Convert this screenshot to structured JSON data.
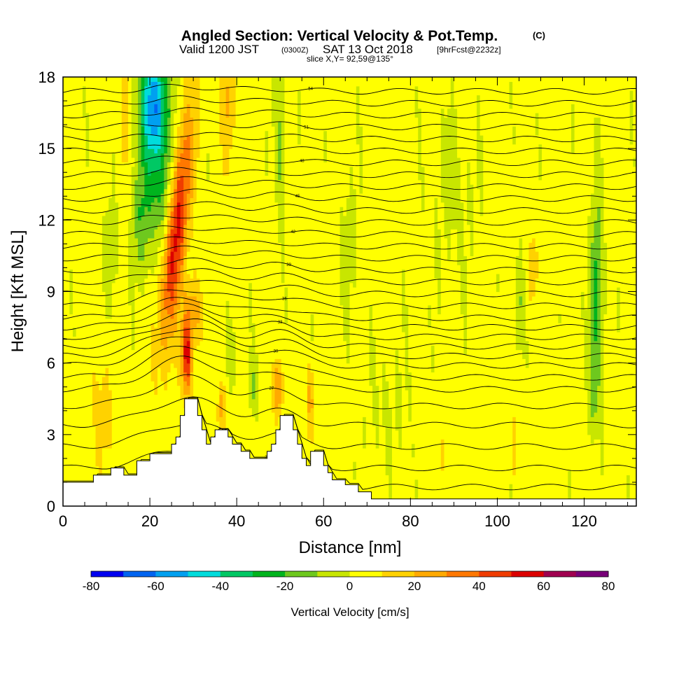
{
  "header": {
    "title": "Angled Section: Vertical Velocity & Pot.Temp.",
    "title_unit": "(C)",
    "valid_prefix": "Valid 1200 JST",
    "valid_utc": "(0300Z)",
    "valid_date": "SAT 13 Oct 2018",
    "fcst": "[9hrFcst@2232z]",
    "slice": "slice X,Y= 92,59@135°"
  },
  "chart_data": {
    "type": "heatmap",
    "xlabel": "Distance [nm]",
    "ylabel": "Height [Kft MSL]",
    "xlim": [
      0,
      132
    ],
    "ylim": [
      0,
      18
    ],
    "x_ticks": [
      "0",
      "20",
      "40",
      "60",
      "80",
      "100",
      "120"
    ],
    "y_ticks": [
      "0",
      "3",
      "6",
      "9",
      "12",
      "15",
      "18"
    ],
    "colorbar": {
      "label": "Vertical Velocity [cm/s]",
      "range": [
        -80,
        80
      ],
      "ticks": [
        "-80",
        "-60",
        "-40",
        "-20",
        "0",
        "20",
        "40",
        "60",
        "80"
      ],
      "colors": [
        "#0000f0",
        "#0064f0",
        "#00a0f0",
        "#00dcdc",
        "#00c864",
        "#00b41e",
        "#6ec81e",
        "#c8e600",
        "#ffff00",
        "#ffd200",
        "#ffaa00",
        "#ff7800",
        "#f03c00",
        "#dc0000",
        "#a00050",
        "#780078"
      ]
    },
    "terrain_profile": [
      [
        0,
        1
      ],
      [
        6,
        1
      ],
      [
        7,
        1.3
      ],
      [
        10,
        1.3
      ],
      [
        11,
        1.6
      ],
      [
        13,
        1.6
      ],
      [
        14,
        1.3
      ],
      [
        16,
        1.3
      ],
      [
        17,
        1.9
      ],
      [
        19,
        1.9
      ],
      [
        20,
        2.2
      ],
      [
        24,
        2.2
      ],
      [
        25,
        2.6
      ],
      [
        26,
        2.9
      ],
      [
        27,
        3.8
      ],
      [
        28,
        4.5
      ],
      [
        30,
        4.5
      ],
      [
        31,
        3.8
      ],
      [
        32,
        3.2
      ],
      [
        33,
        2.6
      ],
      [
        34,
        2.9
      ],
      [
        35,
        3.2
      ],
      [
        37,
        3.2
      ],
      [
        38,
        2.9
      ],
      [
        39,
        2.6
      ],
      [
        41,
        2.3
      ],
      [
        42,
        2.3
      ],
      [
        43,
        2.0
      ],
      [
        46,
        2.0
      ],
      [
        47,
        2.3
      ],
      [
        48,
        2.6
      ],
      [
        49,
        3.2
      ],
      [
        50,
        3.8
      ],
      [
        52,
        3.8
      ],
      [
        53,
        3.2
      ],
      [
        54,
        2.6
      ],
      [
        55,
        2.0
      ],
      [
        56,
        1.7
      ],
      [
        57,
        2.3
      ],
      [
        59,
        2.3
      ],
      [
        60,
        1.7
      ],
      [
        61,
        1.4
      ],
      [
        62,
        1.1
      ],
      [
        64,
        1.1
      ],
      [
        65,
        0.9
      ],
      [
        67,
        0.9
      ],
      [
        68,
        0.6
      ],
      [
        70,
        0.6
      ],
      [
        71,
        0.3
      ],
      [
        132,
        0.3
      ]
    ],
    "velocity_features": [
      {
        "x": 26,
        "y": 11.5,
        "sx": 2.5,
        "sy": 4.5,
        "tilt": -0.18,
        "w": 55
      },
      {
        "x": 28.5,
        "y": 6.3,
        "sx": 1.2,
        "sy": 1.6,
        "tilt": 0,
        "w": 50
      },
      {
        "x": 30,
        "y": 8.2,
        "sx": 2.0,
        "sy": 1.4,
        "tilt": 0,
        "w": 22
      },
      {
        "x": 21,
        "y": 17.0,
        "sx": 3.2,
        "sy": 2.2,
        "tilt": 0,
        "w": -50
      },
      {
        "x": 22,
        "y": 14.0,
        "sx": 3.5,
        "sy": 3.5,
        "tilt": 0.1,
        "w": -28
      },
      {
        "x": 18,
        "y": 12.0,
        "sx": 2.0,
        "sy": 2.5,
        "tilt": 0,
        "w": -20
      },
      {
        "x": 14,
        "y": 16.5,
        "sx": 1.0,
        "sy": 3.0,
        "tilt": 0,
        "w": 14
      },
      {
        "x": 38,
        "y": 17.0,
        "sx": 1.5,
        "sy": 2.5,
        "tilt": 0,
        "w": 18
      },
      {
        "x": 50,
        "y": 15.5,
        "sx": 1.2,
        "sy": 3.5,
        "tilt": 0,
        "w": -18
      },
      {
        "x": 49.5,
        "y": 5.0,
        "sx": 1.0,
        "sy": 1.2,
        "tilt": 0,
        "w": 30
      },
      {
        "x": 57,
        "y": 4.5,
        "sx": 0.9,
        "sy": 1.4,
        "tilt": 0,
        "w": 20
      },
      {
        "x": 36.5,
        "y": 4.2,
        "sx": 0.8,
        "sy": 1.2,
        "tilt": 0,
        "w": 22
      },
      {
        "x": 39,
        "y": 6.5,
        "sx": 1.5,
        "sy": 1.5,
        "tilt": 0,
        "w": -12
      },
      {
        "x": 44,
        "y": 5.0,
        "sx": 1.3,
        "sy": 1.2,
        "tilt": 0,
        "w": -14
      },
      {
        "x": 123,
        "y": 9.0,
        "sx": 1.4,
        "sy": 4.0,
        "tilt": 0,
        "w": -30
      },
      {
        "x": 122,
        "y": 4.8,
        "sx": 1.0,
        "sy": 1.5,
        "tilt": 0,
        "w": -20
      },
      {
        "x": 108,
        "y": 10.0,
        "sx": 1.0,
        "sy": 1.5,
        "tilt": 0,
        "w": 16
      },
      {
        "x": 105,
        "y": 8.5,
        "sx": 1.0,
        "sy": 2.0,
        "tilt": 0,
        "w": -14
      },
      {
        "x": 104,
        "y": 2.5,
        "sx": 0.6,
        "sy": 1.5,
        "tilt": 0,
        "w": 12
      },
      {
        "x": 9,
        "y": 4.0,
        "sx": 3.0,
        "sy": 2.5,
        "tilt": 0,
        "w": 10
      },
      {
        "x": 11,
        "y": 10.5,
        "sx": 1.5,
        "sy": 2.5,
        "tilt": 0,
        "w": -12
      },
      {
        "x": 66,
        "y": 11.0,
        "sx": 2.5,
        "sy": 3.0,
        "tilt": 0,
        "w": -8
      },
      {
        "x": 90,
        "y": 13.0,
        "sx": 6.0,
        "sy": 4.0,
        "tilt": 0,
        "w": -6
      },
      {
        "x": 75,
        "y": 4.0,
        "sx": 6.0,
        "sy": 3.0,
        "tilt": 0,
        "w": -5
      },
      {
        "x": 88,
        "y": 2.0,
        "sx": 2.0,
        "sy": 1.5,
        "tilt": 0,
        "w": 6
      }
    ],
    "theta_contours": [
      {
        "t": 23,
        "h": 0.8,
        "bump": 0.5
      },
      {
        "t": 24,
        "h": 1.6,
        "bump": 0.8
      },
      {
        "t": 25,
        "h": 2.5,
        "bump": 1.0
      },
      {
        "t": 26,
        "h": 3.4,
        "bump": 1.1
      },
      {
        "t": 27,
        "h": 4.2,
        "bump": 1.2
      },
      {
        "t": 28,
        "h": 4.9,
        "bump": 1.3
      },
      {
        "t": 29,
        "h": 5.4,
        "bump": 1.3
      },
      {
        "t": 30,
        "h": 5.9,
        "bump": 1.3
      },
      {
        "t": 31,
        "h": 6.3,
        "bump": 1.2
      },
      {
        "t": 32,
        "h": 6.7,
        "bump": 1.1
      },
      {
        "t": 33,
        "h": 7.1,
        "bump": 1.0
      },
      {
        "t": 34,
        "h": 7.5,
        "bump": 0.9
      },
      {
        "t": 35,
        "h": 7.9,
        "bump": 0.8
      },
      {
        "t": 36,
        "h": 8.4,
        "bump": 0.7
      },
      {
        "t": 37,
        "h": 8.9,
        "bump": 0.6
      },
      {
        "t": 38,
        "h": 9.4,
        "bump": 0.5
      },
      {
        "t": 39,
        "h": 9.9,
        "bump": 0.4
      },
      {
        "t": 40,
        "h": 10.4,
        "bump": 0.4
      },
      {
        "t": 41,
        "h": 10.9,
        "bump": 0.3
      },
      {
        "t": 42,
        "h": 11.4,
        "bump": 0.3
      },
      {
        "t": 43,
        "h": 11.9,
        "bump": 0.3
      },
      {
        "t": 44,
        "h": 12.4,
        "bump": 0.3
      },
      {
        "t": 45,
        "h": 12.9,
        "bump": 0.3
      },
      {
        "t": 46,
        "h": 13.4,
        "bump": 0.3
      },
      {
        "t": 47,
        "h": 13.9,
        "bump": 0.2
      },
      {
        "t": 48,
        "h": 14.4,
        "bump": 0.2
      },
      {
        "t": 49,
        "h": 14.9,
        "bump": 0.2
      },
      {
        "t": 50,
        "h": 15.4,
        "bump": 0.2
      },
      {
        "t": 51,
        "h": 15.9,
        "bump": 0.2
      },
      {
        "t": 52,
        "h": 16.4,
        "bump": 0.2
      },
      {
        "t": 53,
        "h": 16.9,
        "bump": 0.2
      },
      {
        "t": 54,
        "h": 17.4,
        "bump": 0.2
      }
    ]
  }
}
